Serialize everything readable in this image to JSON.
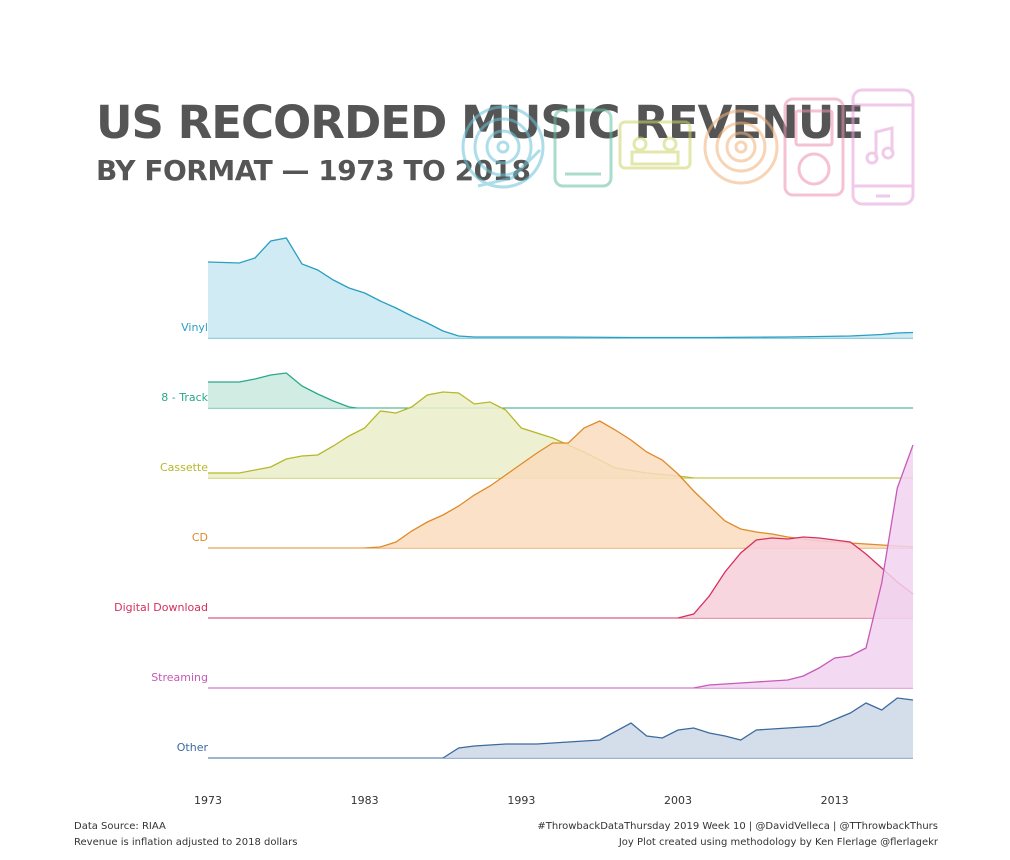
{
  "title": "US RECORDED MUSIC REVENUE",
  "subtitle": "BY FORMAT — 1973 TO 2018",
  "footer": {
    "source": "Data Source: RIAA",
    "note": "Revenue is inflation adjusted to 2018 dollars",
    "credit": "#ThrowbackDataThursday 2019 Week 10 | @DavidVelleca | @TThrowbackThurs",
    "method": "Joy Plot created using methodology by Ken Flerlage @flerlagekr"
  },
  "icons": [
    {
      "name": "vinyl-record-icon",
      "color": "#6cc3d9"
    },
    {
      "name": "8-track-icon",
      "color": "#66c1a5"
    },
    {
      "name": "cassette-icon",
      "color": "#cdd56a"
    },
    {
      "name": "cd-icon",
      "color": "#f2b27a"
    },
    {
      "name": "ipod-icon",
      "color": "#ee92ae"
    },
    {
      "name": "smartphone-icon",
      "color": "#e4a0d8"
    }
  ],
  "chart_data": {
    "type": "area",
    "style": "joyplot",
    "x_ticks": [
      "1973",
      "1983",
      "1993",
      "2003",
      "2013"
    ],
    "xlim": [
      1973,
      2018
    ],
    "series": [
      {
        "name": "Vinyl",
        "color": "#2a9fc2",
        "fill": "#c8e7f1",
        "x": [
          1973,
          1975,
          1976,
          1977,
          1978,
          1979,
          1980,
          1981,
          1982,
          1983,
          1984,
          1985,
          1986,
          1987,
          1988,
          1989,
          1990,
          1991,
          1995,
          2000,
          2005,
          2010,
          2014,
          2016,
          2017,
          2018
        ],
        "y": [
          0.76,
          0.75,
          0.8,
          0.97,
          1.0,
          0.74,
          0.68,
          0.58,
          0.5,
          0.45,
          0.37,
          0.3,
          0.22,
          0.15,
          0.07,
          0.02,
          0.01,
          0.01,
          0.01,
          0.005,
          0.005,
          0.01,
          0.02,
          0.035,
          0.05,
          0.055
        ]
      },
      {
        "name": "8 - Track",
        "color": "#2aa88a",
        "fill": "#c9e9dd",
        "x": [
          1973,
          1975,
          1976,
          1977,
          1978,
          1979,
          1980,
          1981,
          1982,
          1982.5
        ],
        "y": [
          0.26,
          0.26,
          0.29,
          0.33,
          0.35,
          0.22,
          0.14,
          0.07,
          0.01,
          0.0
        ]
      },
      {
        "name": "Cassette",
        "color": "#b7b72a",
        "fill": "#ebeec9",
        "x": [
          1973,
          1975,
          1976,
          1977,
          1978,
          1979,
          1980,
          1981,
          1982,
          1983,
          1984,
          1985,
          1986,
          1987,
          1988,
          1989,
          1990,
          1991,
          1992,
          1993,
          1995,
          1997,
          1999,
          2001,
          2003,
          2004
        ],
        "y": [
          0.05,
          0.05,
          0.08,
          0.11,
          0.19,
          0.22,
          0.23,
          0.32,
          0.42,
          0.5,
          0.67,
          0.65,
          0.71,
          0.83,
          0.86,
          0.85,
          0.74,
          0.76,
          0.68,
          0.5,
          0.4,
          0.26,
          0.1,
          0.05,
          0.02,
          0.0
        ]
      },
      {
        "name": "CD",
        "color": "#e08a2a",
        "fill": "#f9dcbd",
        "x": [
          1983,
          1984,
          1985,
          1986,
          1987,
          1988,
          1989,
          1990,
          1991,
          1992,
          1993,
          1994,
          1995,
          1996,
          1997,
          1998,
          1999,
          2000,
          2001,
          2002,
          2003,
          2004,
          2005,
          2006,
          2007,
          2008,
          2009,
          2010,
          2011,
          2012,
          2013,
          2014,
          2015,
          2016,
          2017,
          2018
        ],
        "y": [
          0.0,
          0.01,
          0.06,
          0.17,
          0.26,
          0.33,
          0.42,
          0.53,
          0.62,
          0.73,
          0.84,
          0.95,
          1.05,
          1.05,
          1.2,
          1.27,
          1.18,
          1.08,
          0.96,
          0.88,
          0.74,
          0.57,
          0.42,
          0.27,
          0.19,
          0.16,
          0.14,
          0.11,
          0.09,
          0.07,
          0.06,
          0.05,
          0.04,
          0.03,
          0.02,
          0.01
        ]
      },
      {
        "name": "Digital Download",
        "color": "#d6305f",
        "fill": "#f7cfdb",
        "x": [
          2003,
          2004,
          2005,
          2006,
          2007,
          2008,
          2009,
          2010,
          2011,
          2012,
          2013,
          2014,
          2015,
          2016,
          2017,
          2018
        ],
        "y": [
          0.0,
          0.04,
          0.22,
          0.46,
          0.65,
          0.78,
          0.8,
          0.79,
          0.81,
          0.8,
          0.78,
          0.76,
          0.64,
          0.5,
          0.36,
          0.24
        ]
      },
      {
        "name": "Streaming",
        "color": "#c65ab8",
        "fill": "#f1d2ee",
        "x": [
          2004,
          2005,
          2006,
          2007,
          2008,
          2009,
          2010,
          2011,
          2012,
          2013,
          2014,
          2015,
          2016,
          2017,
          2018
        ],
        "y": [
          0.0,
          0.03,
          0.04,
          0.05,
          0.06,
          0.07,
          0.08,
          0.12,
          0.2,
          0.3,
          0.32,
          0.4,
          1.05,
          2.0,
          2.43
        ]
      },
      {
        "name": "Other",
        "color": "#3d6a9e",
        "fill": "#cdd7e6",
        "x": [
          1988,
          1989,
          1990,
          1992,
          1994,
          1996,
          1998,
          2000,
          2001,
          2002,
          2003,
          2004,
          2005,
          2006,
          2007,
          2008,
          2010,
          2012,
          2014,
          2015,
          2016,
          2017,
          2018
        ],
        "y": [
          0.0,
          0.1,
          0.12,
          0.14,
          0.14,
          0.16,
          0.18,
          0.35,
          0.22,
          0.2,
          0.28,
          0.3,
          0.25,
          0.22,
          0.18,
          0.28,
          0.3,
          0.32,
          0.45,
          0.55,
          0.48,
          0.6,
          0.58
        ]
      }
    ]
  }
}
